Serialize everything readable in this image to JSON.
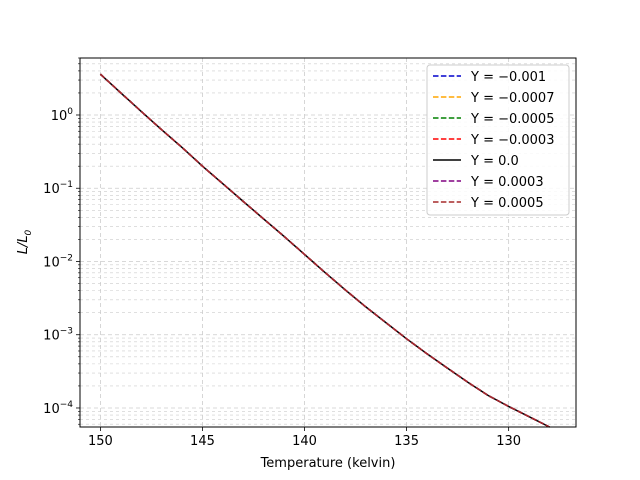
{
  "chart_data": {
    "type": "line",
    "title": "",
    "xlabel": "Temperature (kelvin)",
    "ylabel_prefix": "L/L",
    "ylabel_sub": "0",
    "xlim": [
      151,
      126.7
    ],
    "x_inverted": true,
    "ylim": [
      5.5e-05,
      6.0
    ],
    "yscale": "log",
    "grid": "both (major and minor, dashed)",
    "legend_position": "top-right",
    "x_ticks": [
      150,
      145,
      140,
      135,
      130
    ],
    "y_ticks": [
      {
        "value": 1,
        "base": "10",
        "exp": "0"
      },
      {
        "value": 0.1,
        "base": "10",
        "exp": "−1"
      },
      {
        "value": 0.01,
        "base": "10",
        "exp": "−2"
      },
      {
        "value": 0.001,
        "base": "10",
        "exp": "−3"
      },
      {
        "value": 0.0001,
        "base": "10",
        "exp": "−4"
      }
    ],
    "x": [
      150,
      149,
      148,
      147,
      146,
      145,
      144,
      143,
      142,
      141,
      140,
      139,
      138,
      137,
      136,
      135,
      134,
      133,
      132,
      131,
      130,
      129,
      128
    ],
    "series": [
      {
        "name": "Y = −0.001",
        "color": "#0000cc",
        "dash": "dashed",
        "values": [
          3.6,
          2.0,
          1.12,
          0.63,
          0.36,
          0.2,
          0.115,
          0.066,
          0.038,
          0.022,
          0.0125,
          0.0071,
          0.0041,
          0.0024,
          0.00145,
          0.00088,
          0.00055,
          0.00035,
          0.000225,
          0.000148,
          0.000105,
          7.6e-05,
          5.5e-05
        ]
      },
      {
        "name": "Y = −0.0007",
        "color": "#ffa500",
        "dash": "dashed",
        "values": [
          3.6,
          2.0,
          1.12,
          0.63,
          0.36,
          0.2,
          0.115,
          0.066,
          0.038,
          0.022,
          0.0125,
          0.0071,
          0.0041,
          0.0024,
          0.00145,
          0.00088,
          0.00055,
          0.00035,
          0.000225,
          0.000148,
          0.000105,
          7.6e-05,
          5.5e-05
        ]
      },
      {
        "name": "Y = −0.0005",
        "color": "#008000",
        "dash": "dashed",
        "values": [
          3.6,
          2.0,
          1.12,
          0.63,
          0.36,
          0.2,
          0.115,
          0.066,
          0.038,
          0.022,
          0.0125,
          0.0071,
          0.0041,
          0.0024,
          0.00145,
          0.00088,
          0.00055,
          0.00035,
          0.000225,
          0.000148,
          0.000105,
          7.6e-05,
          5.5e-05
        ]
      },
      {
        "name": "Y = −0.0003",
        "color": "#ff0000",
        "dash": "dashed",
        "values": [
          3.6,
          2.0,
          1.12,
          0.63,
          0.36,
          0.2,
          0.115,
          0.066,
          0.038,
          0.022,
          0.0125,
          0.0071,
          0.0041,
          0.0024,
          0.00145,
          0.00088,
          0.00055,
          0.00035,
          0.000225,
          0.000148,
          0.000105,
          7.6e-05,
          5.5e-05
        ]
      },
      {
        "name": "Y = 0.0",
        "color": "#000000",
        "dash": "solid",
        "values": [
          3.6,
          2.0,
          1.12,
          0.63,
          0.36,
          0.2,
          0.115,
          0.066,
          0.038,
          0.022,
          0.0125,
          0.0071,
          0.0041,
          0.0024,
          0.00145,
          0.00088,
          0.00055,
          0.00035,
          0.000225,
          0.000148,
          0.000105,
          7.6e-05,
          5.5e-05
        ]
      },
      {
        "name": "Y = 0.0003",
        "color": "#800080",
        "dash": "dashed",
        "values": [
          3.6,
          2.0,
          1.12,
          0.63,
          0.36,
          0.2,
          0.115,
          0.066,
          0.038,
          0.022,
          0.0125,
          0.0071,
          0.0041,
          0.0024,
          0.00145,
          0.00088,
          0.00055,
          0.00035,
          0.000225,
          0.000148,
          0.000105,
          7.6e-05,
          5.5e-05
        ]
      },
      {
        "name": "Y = 0.0005",
        "color": "#a52a2a",
        "dash": "dashed",
        "values": [
          3.6,
          2.0,
          1.12,
          0.63,
          0.36,
          0.2,
          0.115,
          0.066,
          0.038,
          0.022,
          0.0125,
          0.0071,
          0.0041,
          0.0024,
          0.00145,
          0.00088,
          0.00055,
          0.00035,
          0.000225,
          0.000148,
          0.000105,
          7.6e-05,
          5.5e-05
        ]
      }
    ]
  }
}
